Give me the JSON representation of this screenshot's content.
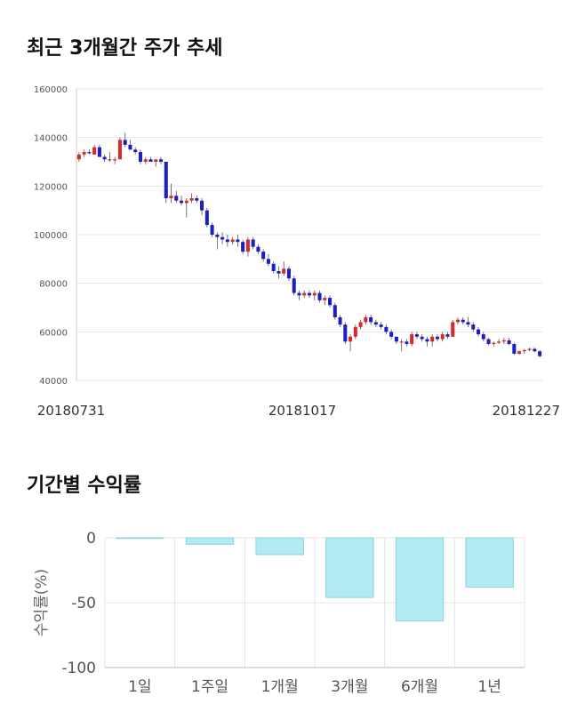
{
  "colors": {
    "up": "#d62a2a",
    "down": "#1d1dc8",
    "bar": "#b2ebf2",
    "bar_stroke": "#8fd3dc",
    "grid": "#e5e5e5"
  },
  "chart_data": [
    {
      "type": "candlestick",
      "title": "최근 3개월간 주가 추세",
      "ylim": [
        40000,
        160000
      ],
      "yticks": [
        40000,
        60000,
        80000,
        100000,
        120000,
        140000,
        160000
      ],
      "xtick_labels": [
        "20180731",
        "20181017",
        "20181227"
      ],
      "ohlc": [
        [
          131000,
          134000,
          130000,
          133000
        ],
        [
          133000,
          135000,
          132000,
          134000
        ],
        [
          134000,
          135000,
          133000,
          133500
        ],
        [
          133000,
          137000,
          133000,
          136000
        ],
        [
          136000,
          137000,
          132000,
          132000
        ],
        [
          132000,
          133000,
          130000,
          131000
        ],
        [
          131000,
          134000,
          130000,
          131000
        ],
        [
          131000,
          132000,
          129000,
          131000
        ],
        [
          131000,
          140000,
          131000,
          139000
        ],
        [
          139000,
          142000,
          136000,
          137000
        ],
        [
          137000,
          139000,
          135000,
          135000
        ],
        [
          135000,
          136000,
          133000,
          134000
        ],
        [
          134000,
          135000,
          129000,
          130000
        ],
        [
          130000,
          132000,
          129000,
          131000
        ],
        [
          131000,
          132000,
          130000,
          130000
        ],
        [
          130000,
          131000,
          128000,
          131000
        ],
        [
          131000,
          132000,
          129000,
          130000
        ],
        [
          130000,
          130000,
          113000,
          115000
        ],
        [
          115000,
          121000,
          113000,
          116000
        ],
        [
          116000,
          118000,
          113000,
          114000
        ],
        [
          114000,
          116000,
          112000,
          113000
        ],
        [
          113000,
          115000,
          107000,
          114000
        ],
        [
          114000,
          117000,
          113000,
          115000
        ],
        [
          115000,
          116000,
          113000,
          114000
        ],
        [
          114000,
          115000,
          108000,
          110000
        ],
        [
          110000,
          111000,
          103000,
          104000
        ],
        [
          104000,
          105000,
          99000,
          100000
        ],
        [
          100000,
          101000,
          94000,
          99000
        ],
        [
          99000,
          101000,
          96000,
          98000
        ],
        [
          98000,
          100000,
          95000,
          97000
        ],
        [
          97000,
          99000,
          96000,
          98000
        ],
        [
          98000,
          100000,
          95000,
          97000
        ],
        [
          97000,
          98000,
          92000,
          93000
        ],
        [
          93000,
          99000,
          91000,
          98000
        ],
        [
          98000,
          99000,
          94000,
          95000
        ],
        [
          95000,
          96000,
          92000,
          93000
        ],
        [
          93000,
          94000,
          89000,
          90000
        ],
        [
          90000,
          92000,
          87000,
          88000
        ],
        [
          88000,
          89000,
          84000,
          85000
        ],
        [
          85000,
          87000,
          82000,
          84000
        ],
        [
          84000,
          89000,
          83000,
          86000
        ],
        [
          86000,
          87000,
          81000,
          82000
        ],
        [
          82000,
          83000,
          75000,
          76000
        ],
        [
          76000,
          77000,
          73000,
          75000
        ],
        [
          75000,
          77000,
          74000,
          76000
        ],
        [
          76000,
          77000,
          74000,
          75000
        ],
        [
          75000,
          77000,
          73000,
          76000
        ],
        [
          76000,
          77000,
          72000,
          73000
        ],
        [
          73000,
          75000,
          71000,
          74000
        ],
        [
          74000,
          75000,
          70000,
          71000
        ],
        [
          71000,
          72000,
          65000,
          66000
        ],
        [
          66000,
          67000,
          62000,
          63000
        ],
        [
          63000,
          64000,
          55000,
          56000
        ],
        [
          56000,
          59000,
          52000,
          58000
        ],
        [
          58000,
          63000,
          57000,
          62000
        ],
        [
          62000,
          65000,
          61000,
          64000
        ],
        [
          64000,
          67000,
          63000,
          66000
        ],
        [
          66000,
          67000,
          63000,
          64000
        ],
        [
          64000,
          65000,
          62000,
          63000
        ],
        [
          63000,
          64000,
          61000,
          62000
        ],
        [
          62000,
          63000,
          59000,
          60000
        ],
        [
          60000,
          61000,
          57000,
          58000
        ],
        [
          58000,
          58000,
          55000,
          56000
        ],
        [
          56000,
          57000,
          52000,
          56000
        ],
        [
          56000,
          57000,
          54000,
          55000
        ],
        [
          55000,
          60000,
          54000,
          59000
        ],
        [
          59000,
          60000,
          57000,
          58000
        ],
        [
          58000,
          59000,
          56000,
          57000
        ],
        [
          57000,
          58000,
          54000,
          56000
        ],
        [
          56000,
          59000,
          54000,
          58000
        ],
        [
          58000,
          59000,
          56000,
          57000
        ],
        [
          57000,
          60000,
          56000,
          59000
        ],
        [
          59000,
          60000,
          57000,
          58000
        ],
        [
          58000,
          65000,
          58000,
          64000
        ],
        [
          64000,
          66000,
          63000,
          65000
        ],
        [
          65000,
          66000,
          63000,
          64000
        ],
        [
          64000,
          66000,
          62000,
          63000
        ],
        [
          63000,
          64000,
          60000,
          61000
        ],
        [
          61000,
          62000,
          58000,
          59000
        ],
        [
          59000,
          60000,
          56000,
          57000
        ],
        [
          57000,
          57500,
          54500,
          55000
        ],
        [
          55000,
          56000,
          54000,
          55500
        ],
        [
          55500,
          57000,
          55000,
          56000
        ],
        [
          56000,
          57500,
          55000,
          56500
        ],
        [
          56500,
          57500,
          54500,
          55000
        ],
        [
          55000,
          55500,
          50500,
          51000
        ],
        [
          51000,
          52500,
          50500,
          52000
        ],
        [
          52000,
          53000,
          51000,
          52500
        ],
        [
          52500,
          53500,
          52000,
          53000
        ],
        [
          53000,
          53500,
          51500,
          52000
        ],
        [
          52000,
          52500,
          49500,
          50000
        ]
      ]
    },
    {
      "type": "bar",
      "title": "기간별 수익률",
      "ylabel": "수익률(%)",
      "ylim": [
        -100,
        0
      ],
      "yticks": [
        0,
        -50,
        -100
      ],
      "categories": [
        "1일",
        "1주일",
        "1개월",
        "3개월",
        "6개월",
        "1년"
      ],
      "values": [
        -0.5,
        -5,
        -13,
        -46,
        -64,
        -38
      ]
    }
  ]
}
